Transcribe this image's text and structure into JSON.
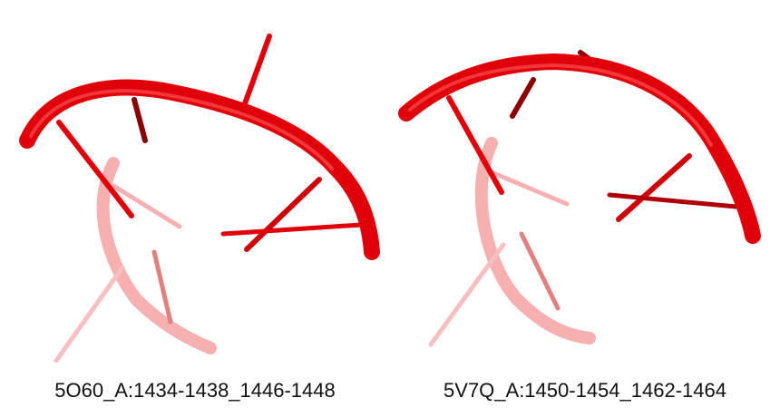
{
  "panels": [
    {
      "label": "5O60_A:1434-1438_1446-1448"
    },
    {
      "label": "5V7Q_A:1450-1454_1462-1464"
    }
  ],
  "colors": {
    "backbone": "#e0000a",
    "backbone_highlight": "#ff5a5a",
    "strand_faded": "#f07070",
    "base_dark": "#8a0006"
  }
}
